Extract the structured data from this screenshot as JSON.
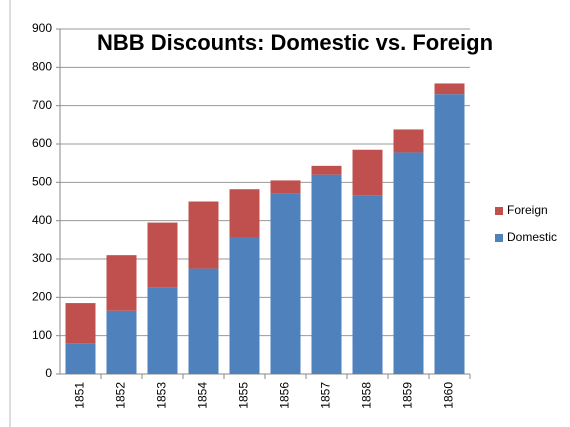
{
  "chart_data": {
    "type": "stacked_bar",
    "title": "NBB Discounts: Domestic vs. Foreign",
    "categories": [
      "1851",
      "1852",
      "1853",
      "1854",
      "1855",
      "1856",
      "1857",
      "1858",
      "1859",
      "1860"
    ],
    "series": [
      {
        "name": "Domestic",
        "color": "#4f81bd",
        "values": [
          80,
          165,
          225,
          275,
          355,
          470,
          520,
          465,
          578,
          730
        ]
      },
      {
        "name": "Foreign",
        "color": "#c0504d",
        "values": [
          105,
          145,
          170,
          175,
          127,
          35,
          23,
          120,
          60,
          28
        ]
      }
    ],
    "ylim": [
      0,
      900
    ],
    "yticks": [
      0,
      100,
      200,
      300,
      400,
      500,
      600,
      700,
      800,
      900
    ],
    "grid": true,
    "legend": "right"
  }
}
